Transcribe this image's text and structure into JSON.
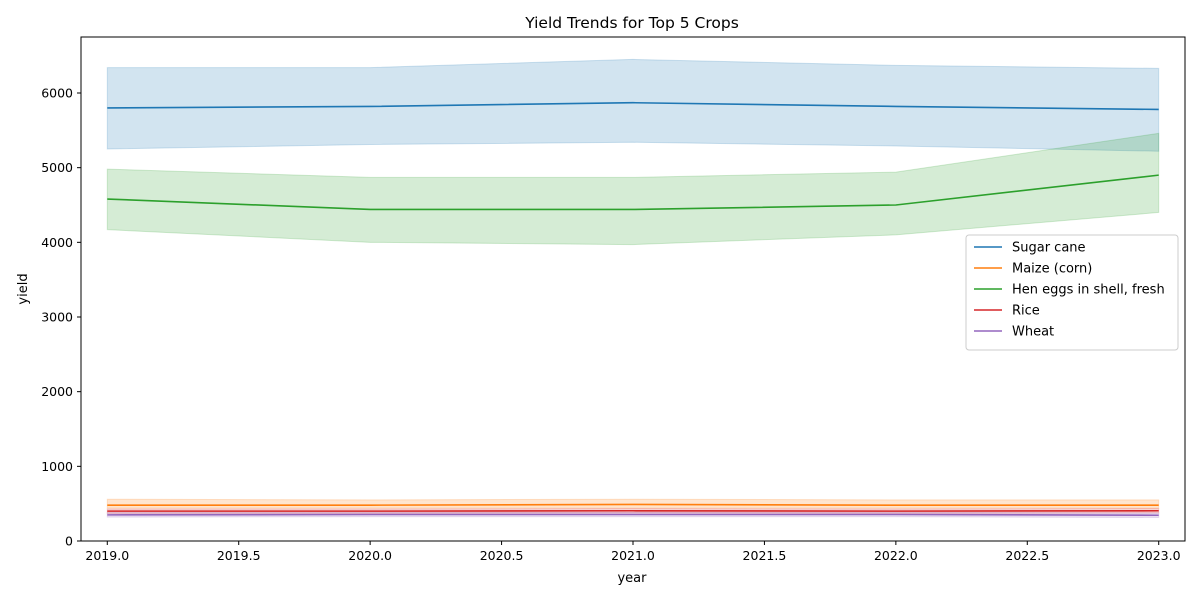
{
  "chart_data": {
    "type": "line",
    "title": "Yield Trends for Top 5 Crops",
    "xlabel": "year",
    "ylabel": "yield",
    "xlim": [
      2018.9,
      2023.1
    ],
    "ylim": [
      0,
      6750
    ],
    "x_ticks": [
      "2019.0",
      "2019.5",
      "2020.0",
      "2020.5",
      "2021.0",
      "2021.5",
      "2022.0",
      "2022.5",
      "2023.0"
    ],
    "y_ticks": [
      "0",
      "1000",
      "2000",
      "3000",
      "4000",
      "5000",
      "6000"
    ],
    "legend_position": "center-right",
    "grid": false,
    "x": [
      2019,
      2020,
      2021,
      2022,
      2023
    ],
    "series": [
      {
        "name": "Sugar cane",
        "color": "#1f77b4",
        "values": [
          5800,
          5820,
          5870,
          5820,
          5780
        ],
        "band_low": [
          5250,
          5310,
          5340,
          5290,
          5220
        ],
        "band_high": [
          6340,
          6340,
          6450,
          6370,
          6330
        ]
      },
      {
        "name": "Maize (corn)",
        "color": "#ff7f0e",
        "values": [
          480,
          480,
          490,
          480,
          480
        ],
        "band_low": [
          440,
          440,
          440,
          440,
          440
        ],
        "band_high": [
          560,
          550,
          560,
          550,
          550
        ]
      },
      {
        "name": "Hen eggs in shell, fresh",
        "color": "#2ca02c",
        "values": [
          4580,
          4440,
          4440,
          4500,
          4900
        ],
        "band_low": [
          4170,
          4000,
          3970,
          4100,
          4400
        ],
        "band_high": [
          4980,
          4870,
          4870,
          4940,
          5460
        ]
      },
      {
        "name": "Rice",
        "color": "#d62728",
        "values": [
          400,
          400,
          405,
          400,
          405
        ],
        "band_low": [
          370,
          370,
          375,
          370,
          375
        ],
        "band_high": [
          430,
          430,
          435,
          430,
          435
        ]
      },
      {
        "name": "Wheat",
        "color": "#9467bd",
        "values": [
          350,
          355,
          355,
          355,
          345
        ],
        "band_low": [
          320,
          325,
          325,
          325,
          315
        ],
        "band_high": [
          380,
          385,
          385,
          385,
          375
        ]
      }
    ]
  }
}
